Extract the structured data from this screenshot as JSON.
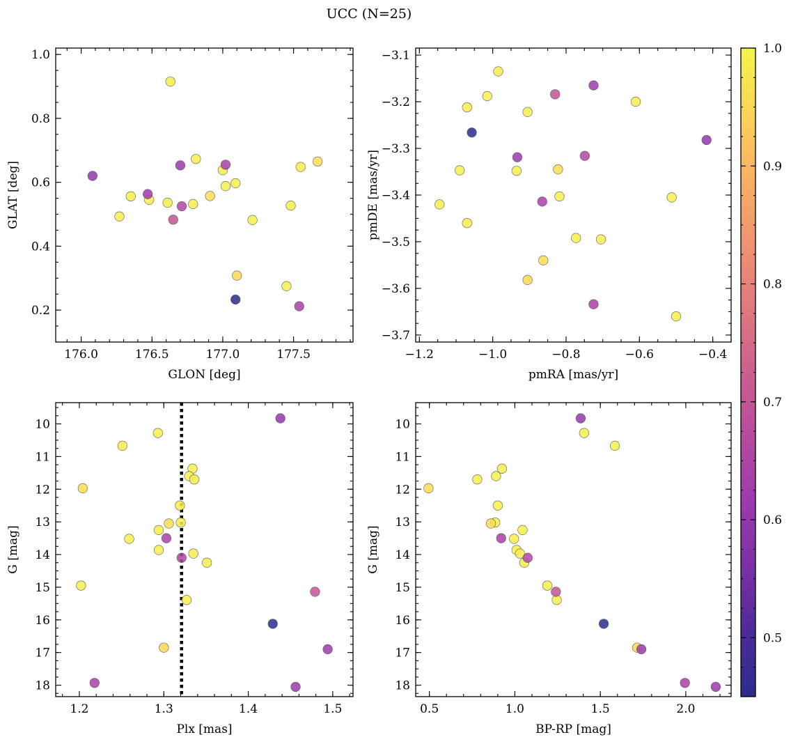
{
  "chart_data": {
    "title": "UCC (N=25)",
    "type": "scatter",
    "colorbar": {
      "colormap": "plasma",
      "range": [
        0.45,
        1.0
      ],
      "tick_labels": [
        "0.5",
        "0.6",
        "0.7",
        "0.8",
        "0.9",
        "1.0"
      ],
      "ticks": [
        0.5,
        0.6,
        0.7,
        0.8,
        0.9,
        1.0
      ]
    },
    "stars": [
      {
        "glon": 176.63,
        "glat": 0.915,
        "pmra": -0.985,
        "pmde": -3.135,
        "plx": 1.293,
        "g": 10.28,
        "bprp": 1.405,
        "c": 0.99
      },
      {
        "glon": 176.08,
        "glat": 0.62,
        "pmra": -0.417,
        "pmde": -3.282,
        "plx": 1.438,
        "g": 9.83,
        "bprp": 1.385,
        "c": 0.6
      },
      {
        "glon": 176.35,
        "glat": 0.556,
        "pmra": -1.015,
        "pmde": -3.188,
        "plx": 1.251,
        "g": 10.67,
        "bprp": 1.585,
        "c": 0.99
      },
      {
        "glon": 176.47,
        "glat": 0.563,
        "pmra": -0.725,
        "pmde": -3.165,
        "plx": 1.494,
        "g": 16.9,
        "bprp": 1.74,
        "c": 0.62
      },
      {
        "glon": 176.27,
        "glat": 0.493,
        "pmra": -1.07,
        "pmde": -3.212,
        "plx": 1.334,
        "g": 11.37,
        "bprp": 0.925,
        "c": 0.99
      },
      {
        "glon": 176.48,
        "glat": 0.545,
        "pmra": -0.905,
        "pmde": -3.222,
        "plx": 1.33,
        "g": 11.6,
        "bprp": 0.89,
        "c": 0.99
      },
      {
        "glon": 176.61,
        "glat": 0.536,
        "pmra": -0.61,
        "pmde": -3.2,
        "plx": 1.336,
        "g": 11.7,
        "bprp": 0.78,
        "c": 0.99
      },
      {
        "glon": 176.65,
        "glat": 0.483,
        "pmra": -0.83,
        "pmde": -3.184,
        "plx": 1.479,
        "g": 15.14,
        "bprp": 1.24,
        "c": 0.7
      },
      {
        "glon": 176.71,
        "glat": 0.525,
        "pmra": -0.749,
        "pmde": -3.316,
        "plx": 1.321,
        "g": 14.1,
        "bprp": 1.075,
        "c": 0.66
      },
      {
        "glon": 176.7,
        "glat": 0.653,
        "pmra": -0.933,
        "pmde": -3.319,
        "plx": 1.456,
        "g": 18.05,
        "bprp": 2.175,
        "c": 0.61
      },
      {
        "glon": 176.79,
        "glat": 0.532,
        "pmra": -1.09,
        "pmde": -3.347,
        "plx": 1.319,
        "g": 12.5,
        "bprp": 0.9,
        "c": 0.99
      },
      {
        "glon": 176.81,
        "glat": 0.673,
        "pmra": -0.935,
        "pmde": -3.348,
        "plx": 1.32,
        "g": 13.02,
        "bprp": 0.885,
        "c": 0.99
      },
      {
        "glon": 176.91,
        "glat": 0.557,
        "pmra": -0.822,
        "pmde": -3.345,
        "plx": 1.306,
        "g": 13.05,
        "bprp": 0.86,
        "c": 0.96
      },
      {
        "glon": 177.0,
        "glat": 0.638,
        "pmra": -1.145,
        "pmde": -3.42,
        "plx": 1.294,
        "g": 13.25,
        "bprp": 1.045,
        "c": 0.99
      },
      {
        "glon": 177.02,
        "glat": 0.655,
        "pmra": -0.865,
        "pmde": -3.414,
        "plx": 1.303,
        "g": 13.5,
        "bprp": 0.92,
        "c": 0.64
      },
      {
        "glon": 177.02,
        "glat": 0.588,
        "pmra": -0.818,
        "pmde": -3.403,
        "plx": 1.259,
        "g": 13.52,
        "bprp": 0.995,
        "c": 0.99
      },
      {
        "glon": 177.09,
        "glat": 0.597,
        "pmra": -0.512,
        "pmde": -3.405,
        "plx": 1.294,
        "g": 13.86,
        "bprp": 1.01,
        "c": 0.99
      },
      {
        "glon": 177.21,
        "glat": 0.482,
        "pmra": -1.07,
        "pmde": -3.46,
        "plx": 1.335,
        "g": 13.97,
        "bprp": 1.03,
        "c": 0.99
      },
      {
        "glon": 177.45,
        "glat": 0.275,
        "pmra": -0.773,
        "pmde": -3.492,
        "plx": 1.351,
        "g": 14.25,
        "bprp": 1.055,
        "c": 0.99
      },
      {
        "glon": 177.48,
        "glat": 0.527,
        "pmra": -0.705,
        "pmde": -3.495,
        "plx": 1.202,
        "g": 14.95,
        "bprp": 1.19,
        "c": 0.99
      },
      {
        "glon": 177.55,
        "glat": 0.648,
        "pmra": -0.5,
        "pmde": -3.66,
        "plx": 1.327,
        "g": 15.39,
        "bprp": 1.245,
        "c": 0.99
      },
      {
        "glon": 177.67,
        "glat": 0.665,
        "pmra": -0.862,
        "pmde": -3.54,
        "plx": 1.204,
        "g": 11.97,
        "bprp": 0.495,
        "c": 0.96
      },
      {
        "glon": 177.1,
        "glat": 0.308,
        "pmra": -0.905,
        "pmde": -3.582,
        "plx": 1.3,
        "g": 16.85,
        "bprp": 1.715,
        "c": 0.95
      },
      {
        "glon": 177.09,
        "glat": 0.233,
        "pmra": -1.057,
        "pmde": -3.266,
        "plx": 1.429,
        "g": 16.12,
        "bprp": 1.52,
        "c": 0.45
      },
      {
        "glon": 177.54,
        "glat": 0.212,
        "pmra": -0.725,
        "pmde": -3.634,
        "plx": 1.218,
        "g": 17.93,
        "bprp": 1.995,
        "c": 0.64
      }
    ],
    "panels": [
      {
        "id": "glon-glat",
        "xlabel": "GLON [deg]",
        "ylabel": "GLAT [deg]",
        "xkey": "glon",
        "ykey": "glat",
        "xlim": [
          175.82,
          177.92
        ],
        "ylim": [
          0.1,
          1.02
        ],
        "y_inverted": false,
        "xticks": [
          176.0,
          176.5,
          177.0,
          177.5
        ],
        "xtick_labels": [
          "176.0",
          "176.5",
          "177.0",
          "177.5"
        ],
        "xminor": 0.1,
        "yticks": [
          0.2,
          0.4,
          0.6,
          0.8,
          1.0
        ],
        "ytick_labels": [
          "0.2",
          "0.4",
          "0.6",
          "0.8",
          "1.0"
        ],
        "yminor": 0.05
      },
      {
        "id": "pmra-pmde",
        "xlabel": "pmRA [mas/yr]",
        "ylabel": "pmDE [mas/yr]",
        "xkey": "pmra",
        "ykey": "pmde",
        "xlim": [
          -1.21,
          -0.35
        ],
        "ylim": [
          -3.715,
          -3.085
        ],
        "y_inverted": false,
        "xticks": [
          -1.2,
          -1.0,
          -0.8,
          -0.6,
          -0.4
        ],
        "xtick_labels": [
          "−1.2",
          "−1.0",
          "−0.8",
          "−0.6",
          "−0.4"
        ],
        "xminor": 0.05,
        "yticks": [
          -3.7,
          -3.6,
          -3.5,
          -3.4,
          -3.3,
          -3.2,
          -3.1
        ],
        "ytick_labels": [
          "−3.7",
          "−3.6",
          "−3.5",
          "−3.4",
          "−3.3",
          "−3.2",
          "−3.1"
        ],
        "yminor": 0.025
      },
      {
        "id": "plx-g",
        "xlabel": "Plx [mas]",
        "ylabel": "G [mag]",
        "xkey": "plx",
        "ykey": "g",
        "xlim": [
          1.172,
          1.524
        ],
        "ylim": [
          9.35,
          18.35
        ],
        "y_inverted": true,
        "vline": 1.321,
        "xticks": [
          1.2,
          1.3,
          1.4,
          1.5
        ],
        "xtick_labels": [
          "1.2",
          "1.3",
          "1.4",
          "1.5"
        ],
        "xminor": 0.02,
        "yticks": [
          10,
          11,
          12,
          13,
          14,
          15,
          16,
          17,
          18
        ],
        "ytick_labels": [
          "10",
          "11",
          "12",
          "13",
          "14",
          "15",
          "16",
          "17",
          "18"
        ],
        "yminor": 0.25
      },
      {
        "id": "bprp-g",
        "xlabel": "BP-RP [mag]",
        "ylabel": "G [mag]",
        "xkey": "bprp",
        "ykey": "g",
        "xlim": [
          0.42,
          2.265
        ],
        "ylim": [
          9.35,
          18.35
        ],
        "y_inverted": true,
        "xticks": [
          0.5,
          1.0,
          1.5,
          2.0
        ],
        "xtick_labels": [
          "0.5",
          "1.0",
          "1.5",
          "2.0"
        ],
        "xminor": 0.1,
        "yticks": [
          10,
          11,
          12,
          13,
          14,
          15,
          16,
          17,
          18
        ],
        "ytick_labels": [
          "10",
          "11",
          "12",
          "13",
          "14",
          "15",
          "16",
          "17",
          "18"
        ],
        "yminor": 0.25
      }
    ]
  }
}
